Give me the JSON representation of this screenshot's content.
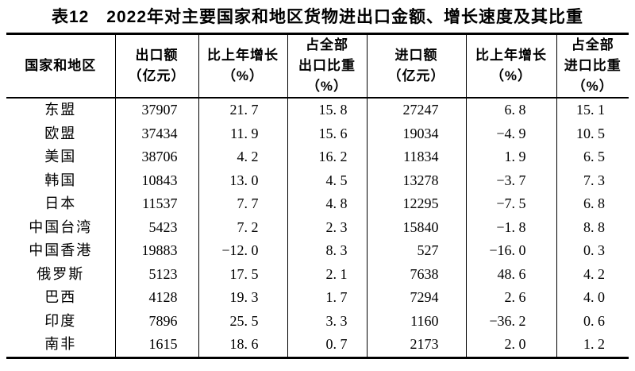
{
  "title": "表12　2022年对主要国家和地区货物进出口金额、增长速度及其比重",
  "colors": {
    "text": "#000000",
    "background": "#ffffff",
    "rule": "#000000"
  },
  "table": {
    "columns": [
      {
        "id": "region",
        "label_lines": [
          "国家和地区"
        ]
      },
      {
        "id": "export-value",
        "label_lines": [
          "出口额",
          "（亿元）"
        ]
      },
      {
        "id": "export-growth",
        "label_lines": [
          "比上年增长",
          "（%）"
        ]
      },
      {
        "id": "export-share",
        "label_lines": [
          "占全部",
          "出口比重",
          "（%）"
        ]
      },
      {
        "id": "import-value",
        "label_lines": [
          "进口额",
          "（亿元）"
        ]
      },
      {
        "id": "import-growth",
        "label_lines": [
          "比上年增长",
          "（%）"
        ]
      },
      {
        "id": "import-share",
        "label_lines": [
          "占全部",
          "进口比重",
          "（%）"
        ]
      }
    ],
    "rows": [
      [
        "东盟",
        "37907",
        "21.7",
        "15.8",
        "27247",
        "6.8",
        "15.1"
      ],
      [
        "欧盟",
        "37434",
        "11.9",
        "15.6",
        "19034",
        "-4.9",
        "10.5"
      ],
      [
        "美国",
        "38706",
        "4.2",
        "16.2",
        "11834",
        "1.9",
        "6.5"
      ],
      [
        "韩国",
        "10843",
        "13.0",
        "4.5",
        "13278",
        "-3.7",
        "7.3"
      ],
      [
        "日本",
        "11537",
        "7.7",
        "4.8",
        "12295",
        "-7.5",
        "6.8"
      ],
      [
        "中国台湾",
        "5423",
        "7.2",
        "2.3",
        "15840",
        "-1.8",
        "8.8"
      ],
      [
        "中国香港",
        "19883",
        "-12.0",
        "8.3",
        "527",
        "-16.0",
        "0.3"
      ],
      [
        "俄罗斯",
        "5123",
        "17.5",
        "2.1",
        "7638",
        "48.6",
        "4.2"
      ],
      [
        "巴西",
        "4128",
        "19.3",
        "1.7",
        "7294",
        "2.6",
        "4.0"
      ],
      [
        "印度",
        "7896",
        "25.5",
        "3.3",
        "1160",
        "-36.2",
        "0.6"
      ],
      [
        "南非",
        "1615",
        "18.6",
        "0.7",
        "2173",
        "2.0",
        "1.2"
      ]
    ]
  }
}
